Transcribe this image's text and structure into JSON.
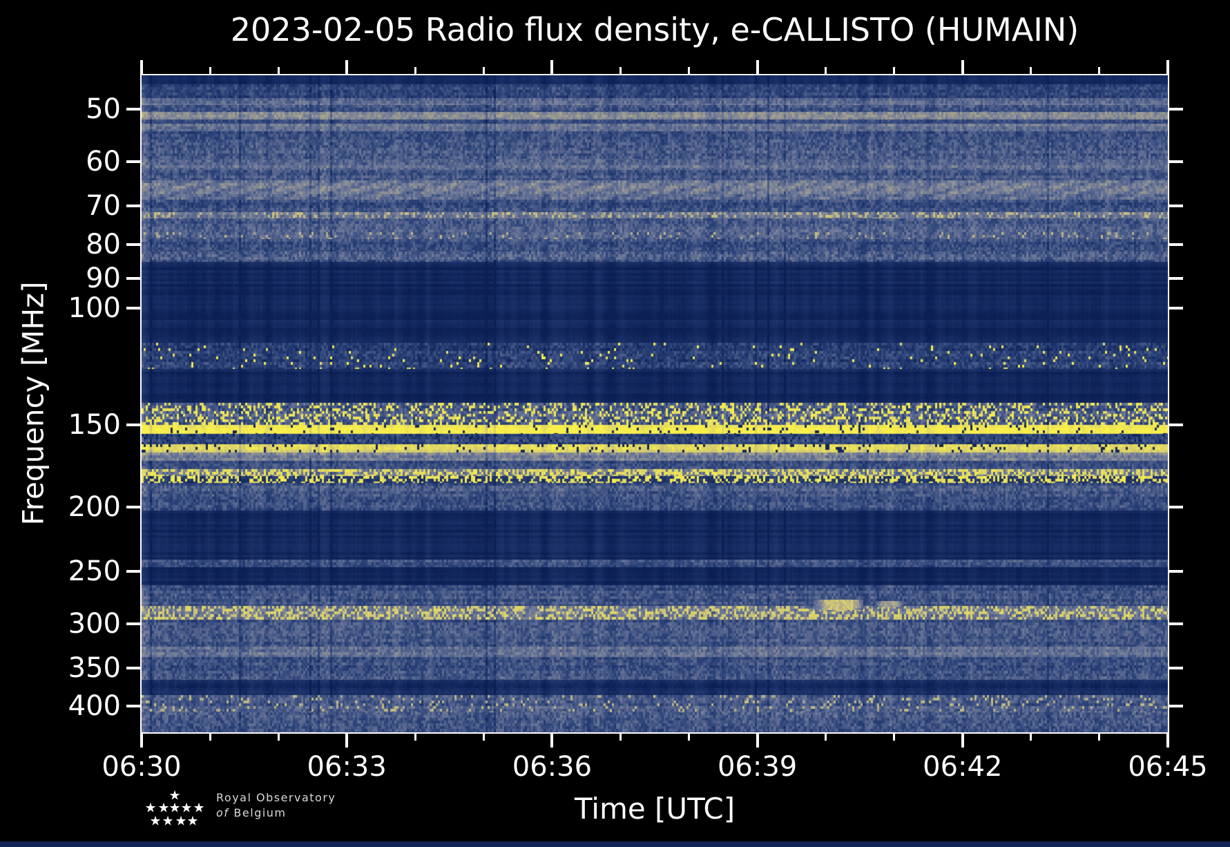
{
  "header": {
    "title": "2023-02-05 Radio flux density, e-CALLISTO (HUMAIN)"
  },
  "axes": {
    "xlabel": "Time [UTC]",
    "ylabel": "Frequency [MHz]",
    "x_tick_labels": [
      "06:30",
      "06:33",
      "06:36",
      "06:39",
      "06:42",
      "06:45"
    ],
    "y_tick_labels": [
      "50",
      "60",
      "70",
      "80",
      "90",
      "100",
      "150",
      "200",
      "250",
      "300",
      "350",
      "400"
    ]
  },
  "logo": {
    "star_glyph": "★",
    "line1": "Royal Observatory",
    "line2_italic": "of",
    "line2_rest": "Belgium"
  },
  "chart_data": {
    "type": "heatmap",
    "title": "2023-02-05 Radio flux density, e-CALLISTO (HUMAIN)",
    "xlabel": "Time [UTC]",
    "ylabel": "Frequency [MHz]",
    "x_range_utc": [
      "06:30",
      "06:45"
    ],
    "x_major_tick_minutes": [
      0,
      3,
      6,
      9,
      12,
      15
    ],
    "x_minor_step_minutes": 1,
    "y_scale": "log",
    "y_range_mhz": [
      44.4,
      438
    ],
    "y_ticks_mhz": [
      50,
      60,
      70,
      80,
      90,
      100,
      150,
      200,
      250,
      300,
      350,
      400
    ],
    "grid": false,
    "legend": "none",
    "colormap": {
      "stops": [
        [
          0.0,
          "#0b1f55"
        ],
        [
          0.25,
          "#2c4379"
        ],
        [
          0.5,
          "#6d7899"
        ],
        [
          0.75,
          "#bab189"
        ],
        [
          1.0,
          "#f8ef4b"
        ]
      ]
    },
    "bands": [
      {
        "f0": 44.4,
        "f1": 45.8,
        "base": 0.05,
        "amp": 0.03
      },
      {
        "f0": 45.8,
        "f1": 48.1,
        "base": 0.26,
        "amp": 0.22
      },
      {
        "f0": 48.1,
        "f1": 49.2,
        "base": 0.44,
        "amp": 0.22
      },
      {
        "f0": 49.2,
        "f1": 50.5,
        "base": 0.33,
        "amp": 0.24
      },
      {
        "f0": 50.5,
        "f1": 51.8,
        "base": 0.6,
        "amp": 0.18
      },
      {
        "f0": 51.8,
        "f1": 52.6,
        "base": 0.24,
        "amp": 0.18
      },
      {
        "f0": 52.6,
        "f1": 53.9,
        "base": 0.46,
        "amp": 0.2
      },
      {
        "f0": 53.9,
        "f1": 56.6,
        "base": 0.3,
        "amp": 0.24
      },
      {
        "f0": 56.6,
        "f1": 59.5,
        "base": 0.35,
        "amp": 0.26
      },
      {
        "f0": 59.5,
        "f1": 61.7,
        "base": 0.44,
        "amp": 0.22
      },
      {
        "f0": 61.7,
        "f1": 64.0,
        "base": 0.32,
        "amp": 0.24
      },
      {
        "f0": 64.0,
        "f1": 68.5,
        "base": 0.4,
        "amp": 0.2,
        "arc": 0.14
      },
      {
        "f0": 68.5,
        "f1": 71.5,
        "base": 0.3,
        "amp": 0.24
      },
      {
        "f0": 71.5,
        "f1": 73.1,
        "base": 0.52,
        "amp": 0.2,
        "speckle": 0.2,
        "speckle_val": 0.78
      },
      {
        "f0": 73.1,
        "f1": 76.7,
        "base": 0.37,
        "amp": 0.24
      },
      {
        "f0": 76.7,
        "f1": 78.5,
        "base": 0.43,
        "amp": 0.24,
        "speckle": 0.08,
        "speckle_val": 0.74
      },
      {
        "f0": 78.5,
        "f1": 82.1,
        "base": 0.31,
        "amp": 0.24
      },
      {
        "f0": 82.1,
        "f1": 85.1,
        "base": 0.34,
        "amp": 0.28
      },
      {
        "f0": 85.1,
        "f1": 112.6,
        "base": 0.05,
        "amp": 0.02
      },
      {
        "f0": 112.6,
        "f1": 123.6,
        "base": 0.22,
        "amp": 0.26,
        "speckle": 0.035,
        "speckle_val": 0.97
      },
      {
        "f0": 123.6,
        "f1": 139.0,
        "base": 0.05,
        "amp": 0.02
      },
      {
        "f0": 139.0,
        "f1": 150.2,
        "base": 0.36,
        "amp": 0.3,
        "speckle": 0.3,
        "speckle_val": 0.95
      },
      {
        "f0": 150.2,
        "f1": 154.8,
        "base": 0.95,
        "amp": 0.06,
        "gap": 0.05
      },
      {
        "f0": 154.8,
        "f1": 160.4,
        "base": 0.27,
        "amp": 0.22,
        "gap": 0.12
      },
      {
        "f0": 160.4,
        "f1": 165.4,
        "base": 0.9,
        "amp": 0.1,
        "gap": 0.09
      },
      {
        "f0": 165.4,
        "f1": 170.2,
        "base": 0.52,
        "amp": 0.22
      },
      {
        "f0": 170.2,
        "f1": 175.0,
        "base": 0.3,
        "amp": 0.22
      },
      {
        "f0": 175.0,
        "f1": 179.2,
        "base": 0.48,
        "amp": 0.24,
        "speckle": 0.5,
        "speckle_val": 0.92
      },
      {
        "f0": 179.2,
        "f1": 183.5,
        "base": 0.16,
        "amp": 0.16,
        "speckle": 0.42,
        "speckle_val": 0.95
      },
      {
        "f0": 183.5,
        "f1": 202.4,
        "base": 0.33,
        "amp": 0.24
      },
      {
        "f0": 202.4,
        "f1": 240.1,
        "base": 0.05,
        "amp": 0.02
      },
      {
        "f0": 240.1,
        "f1": 246.6,
        "base": 0.3,
        "amp": 0.22
      },
      {
        "f0": 246.6,
        "f1": 262.3,
        "base": 0.05,
        "amp": 0.02
      },
      {
        "f0": 262.3,
        "f1": 281.9,
        "base": 0.31,
        "amp": 0.24
      },
      {
        "f0": 281.9,
        "f1": 295.7,
        "base": 0.46,
        "amp": 0.22,
        "speckle": 0.4,
        "speckle_val": 0.86
      },
      {
        "f0": 295.7,
        "f1": 325.0,
        "base": 0.33,
        "amp": 0.24
      },
      {
        "f0": 325.0,
        "f1": 336.9,
        "base": 0.45,
        "amp": 0.22
      },
      {
        "f0": 336.9,
        "f1": 365.1,
        "base": 0.31,
        "amp": 0.24
      },
      {
        "f0": 365.1,
        "f1": 384.8,
        "base": 0.08,
        "amp": 0.06
      },
      {
        "f0": 384.8,
        "f1": 408.6,
        "base": 0.36,
        "amp": 0.24,
        "speckle": 0.1,
        "speckle_val": 0.76
      },
      {
        "f0": 408.6,
        "f1": 438.0,
        "base": 0.34,
        "amp": 0.26
      }
    ],
    "features": [
      {
        "type": "bright-patch",
        "t_frac": [
          0.655,
          0.703
        ],
        "f_mhz": [
          276,
          286
        ],
        "value": 0.8
      },
      {
        "type": "bright-patch",
        "t_frac": [
          0.714,
          0.742
        ],
        "f_mhz": [
          277,
          283
        ],
        "value": 0.66
      }
    ]
  }
}
